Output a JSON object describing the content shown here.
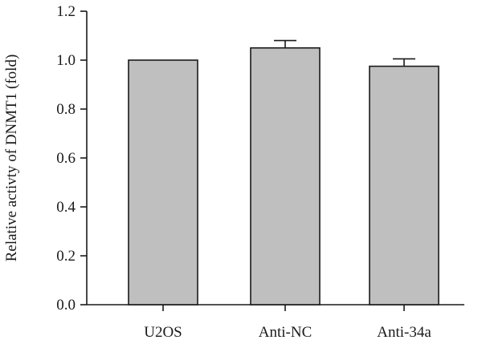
{
  "chart_data": {
    "type": "bar",
    "title": "",
    "xlabel": "",
    "ylabel": "Relative activty of DNMT1 (fold)",
    "categories": [
      "U2OS",
      "Anti-NC",
      "Anti-34a"
    ],
    "values": [
      1.0,
      1.05,
      0.975
    ],
    "error": [
      0.0,
      0.03,
      0.03
    ],
    "ylim": [
      0,
      1.2
    ],
    "yticks": [
      "0.0",
      "0.2",
      "0.4",
      "0.6",
      "0.8",
      "1.0",
      "1.2"
    ],
    "ytick_values": [
      0,
      0.2,
      0.4,
      0.6,
      0.8,
      1.0,
      1.2
    ],
    "grid": false,
    "legend": "none",
    "colors": {
      "bar_fill": "#bfbfbf",
      "bar_stroke": "#1a1a1a"
    }
  }
}
